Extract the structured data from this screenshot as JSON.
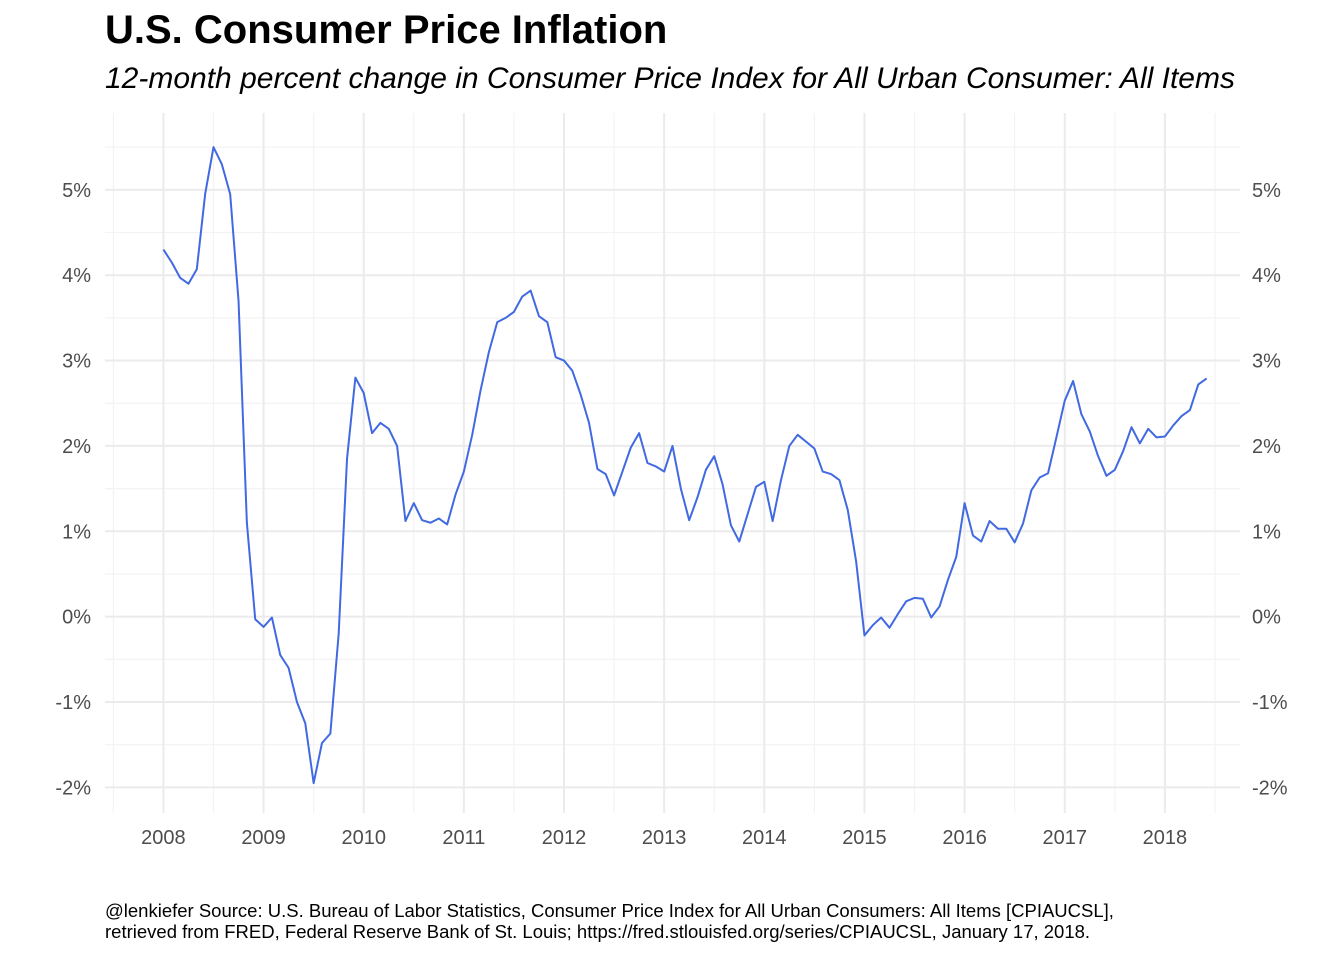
{
  "title": "U.S. Consumer Price Inflation",
  "subtitle": "12-month percent change in Consumer Price Index for All Urban Consumer: All Items",
  "caption": {
    "line1": "@lenkiefer Source: U.S. Bureau of Labor Statistics, Consumer Price Index for All Urban Consumers: All Items [CPIAUCSL],",
    "line2": "retrieved from FRED, Federal Reserve Bank of St. Louis; https://fred.stlouisfed.org/series/CPIAUCSL, January 17, 2018."
  },
  "colors": {
    "line": "#4169e1",
    "grid_major": "#ebebeb",
    "grid_minor": "#f3f3f3",
    "tick_text": "#4d4d4d"
  },
  "chart_data": {
    "type": "line",
    "title": "U.S. Consumer Price Inflation",
    "subtitle": "12-month percent change in Consumer Price Index for All Urban Consumer: All Items",
    "xlabel": "",
    "ylabel": "",
    "xlim": [
      "2007-06",
      "2018-10"
    ],
    "ylim": [
      -2.3,
      5.9
    ],
    "x_ticks": [
      "2008",
      "2009",
      "2010",
      "2011",
      "2012",
      "2013",
      "2014",
      "2015",
      "2016",
      "2017",
      "2018"
    ],
    "y_ticks": [
      -2,
      -1,
      0,
      1,
      2,
      3,
      4,
      5
    ],
    "y_tick_labels": [
      "-2%",
      "-1%",
      "0%",
      "1%",
      "2%",
      "3%",
      "4%",
      "5%"
    ],
    "y_axis_sides": "left and right",
    "grid": true,
    "legend": "none",
    "start": "2008-01",
    "frequency": "monthly",
    "values": [
      4.3,
      4.15,
      3.97,
      3.9,
      4.07,
      4.95,
      5.5,
      5.3,
      4.95,
      3.7,
      1.1,
      -0.03,
      -0.12,
      -0.01,
      -0.45,
      -0.6,
      -1.0,
      -1.25,
      -1.95,
      -1.48,
      -1.37,
      -0.2,
      1.85,
      2.8,
      2.62,
      2.15,
      2.27,
      2.2,
      2.0,
      1.12,
      1.33,
      1.13,
      1.1,
      1.15,
      1.08,
      1.43,
      1.7,
      2.13,
      2.65,
      3.1,
      3.45,
      3.5,
      3.57,
      3.75,
      3.82,
      3.52,
      3.45,
      3.04,
      3.0,
      2.88,
      2.6,
      2.27,
      1.73,
      1.67,
      1.42,
      1.7,
      1.98,
      2.15,
      1.8,
      1.76,
      1.7,
      2.0,
      1.5,
      1.13,
      1.4,
      1.72,
      1.88,
      1.55,
      1.07,
      0.88,
      1.2,
      1.52,
      1.58,
      1.12,
      1.6,
      2.0,
      2.13,
      2.05,
      1.97,
      1.7,
      1.67,
      1.6,
      1.25,
      0.65,
      -0.22,
      -0.1,
      -0.01,
      -0.13,
      0.03,
      0.18,
      0.22,
      0.21,
      -0.01,
      0.12,
      0.43,
      0.7,
      1.33,
      0.95,
      0.88,
      1.12,
      1.03,
      1.03,
      0.87,
      1.09,
      1.48,
      1.63,
      1.68,
      2.1,
      2.53,
      2.76,
      2.37,
      2.17,
      1.88,
      1.65,
      1.72,
      1.94,
      2.22,
      2.03,
      2.2,
      2.1,
      2.11,
      2.24,
      2.35,
      2.42,
      2.72,
      2.79
    ]
  }
}
